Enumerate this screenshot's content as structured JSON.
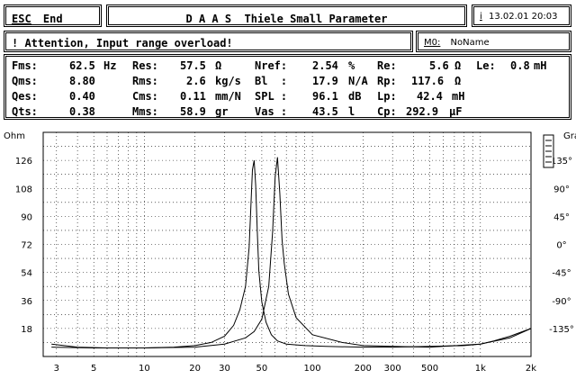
{
  "header": {
    "esc_key": "ESC",
    "end_label": "End",
    "title": "D A A S  Thiele Small Parameter",
    "info_key": "i",
    "datetime": "13.02.01 20:03"
  },
  "warning": {
    "icon": "exclamation-icon",
    "text": "! Attention, Input range overload!"
  },
  "measurement": {
    "label": "M0:",
    "name": "NoName"
  },
  "params": {
    "fms": {
      "label": "Fms:",
      "value": "62.5",
      "unit": "Hz"
    },
    "qms": {
      "label": "Qms:",
      "value": "8.80",
      "unit": ""
    },
    "qes": {
      "label": "Qes:",
      "value": "0.40",
      "unit": ""
    },
    "qts": {
      "label": "Qts:",
      "value": "0.38",
      "unit": ""
    },
    "res": {
      "label": "Res:",
      "value": "57.5",
      "unit": "Ω"
    },
    "rms": {
      "label": "Rms:",
      "value": "2.6",
      "unit": "kg/s"
    },
    "cms": {
      "label": "Cms:",
      "value": "0.11",
      "unit": "mm/N"
    },
    "mms": {
      "label": "Mms:",
      "value": "58.9",
      "unit": "gr"
    },
    "nref": {
      "label": "Nref:",
      "value": "2.54",
      "unit": "%"
    },
    "bl": {
      "label": "Bl  :",
      "value": "17.9",
      "unit": "N/A"
    },
    "spl": {
      "label": "SPL :",
      "value": "96.1",
      "unit": "dB"
    },
    "vas": {
      "label": "Vas :",
      "value": "43.5",
      "unit": "l"
    },
    "re": {
      "label": "Re:",
      "value": "5.6",
      "unit": "Ω"
    },
    "rp": {
      "label": "Rp:",
      "value": "117.6",
      "unit": "Ω"
    },
    "lp": {
      "label": "Lp:",
      "value": "42.4",
      "unit": "mH"
    },
    "cp": {
      "label": "Cp:",
      "value": "292.9",
      "unit": "µF"
    },
    "le": {
      "label": "Le:",
      "value": "0.8",
      "unit": "mH"
    }
  },
  "chart_data": {
    "type": "line",
    "ylabel": "Ohm",
    "y2label": "Grad",
    "xscale": "log",
    "xlim": [
      2.5,
      2000
    ],
    "ylim": [
      0,
      144
    ],
    "y2lim": [
      -180,
      180
    ],
    "x_ticks": [
      3,
      5,
      10,
      20,
      50,
      100,
      200,
      500,
      1000,
      2000
    ],
    "x_tick_labels": [
      "3",
      "5",
      "10",
      "20",
      "30",
      "50",
      "100",
      "200",
      "300",
      "500",
      "1k",
      "2k"
    ],
    "x_tick_values": [
      3,
      5,
      10,
      20,
      30,
      50,
      100,
      200,
      300,
      500,
      1000,
      2000
    ],
    "y_tick_values": [
      18,
      36,
      54,
      72,
      90,
      108,
      126
    ],
    "y_tick_labels": [
      "18",
      "36",
      "54",
      "72",
      "90",
      "108",
      "126"
    ],
    "y2_tick_values": [
      -135,
      -90,
      -45,
      0,
      45,
      90,
      135
    ],
    "y2_tick_labels": [
      "-135°",
      "-90°",
      "-45°",
      "0°",
      "45°",
      "90°",
      "135°"
    ],
    "grid": true,
    "series": [
      {
        "x": [
          2.8,
          4,
          6,
          10,
          15,
          20,
          25,
          30,
          34,
          37,
          40,
          42,
          44,
          45,
          46,
          47,
          48,
          50,
          53,
          57,
          62,
          70,
          90,
          120,
          200,
          300,
          500,
          800,
          1000,
          1200,
          1500,
          2000
        ],
        "values": [
          8,
          6,
          5.5,
          5.5,
          6,
          7,
          9,
          13,
          20,
          30,
          45,
          70,
          120,
          126,
          110,
          80,
          55,
          35,
          22,
          14,
          10,
          8,
          7,
          6.5,
          6,
          6,
          6.5,
          7,
          8,
          10,
          13,
          18
        ]
      },
      {
        "x": [
          2.8,
          5,
          10,
          20,
          30,
          40,
          45,
          50,
          55,
          58,
          60,
          62,
          64,
          66,
          68,
          72,
          80,
          100,
          150,
          200,
          300,
          500,
          1000,
          1500,
          2000
        ],
        "values": [
          6,
          5.5,
          5.5,
          6,
          8,
          12,
          16,
          24,
          45,
          80,
          115,
          128,
          105,
          75,
          60,
          40,
          25,
          14,
          9,
          7,
          6.5,
          6,
          8,
          12,
          18
        ]
      }
    ]
  }
}
